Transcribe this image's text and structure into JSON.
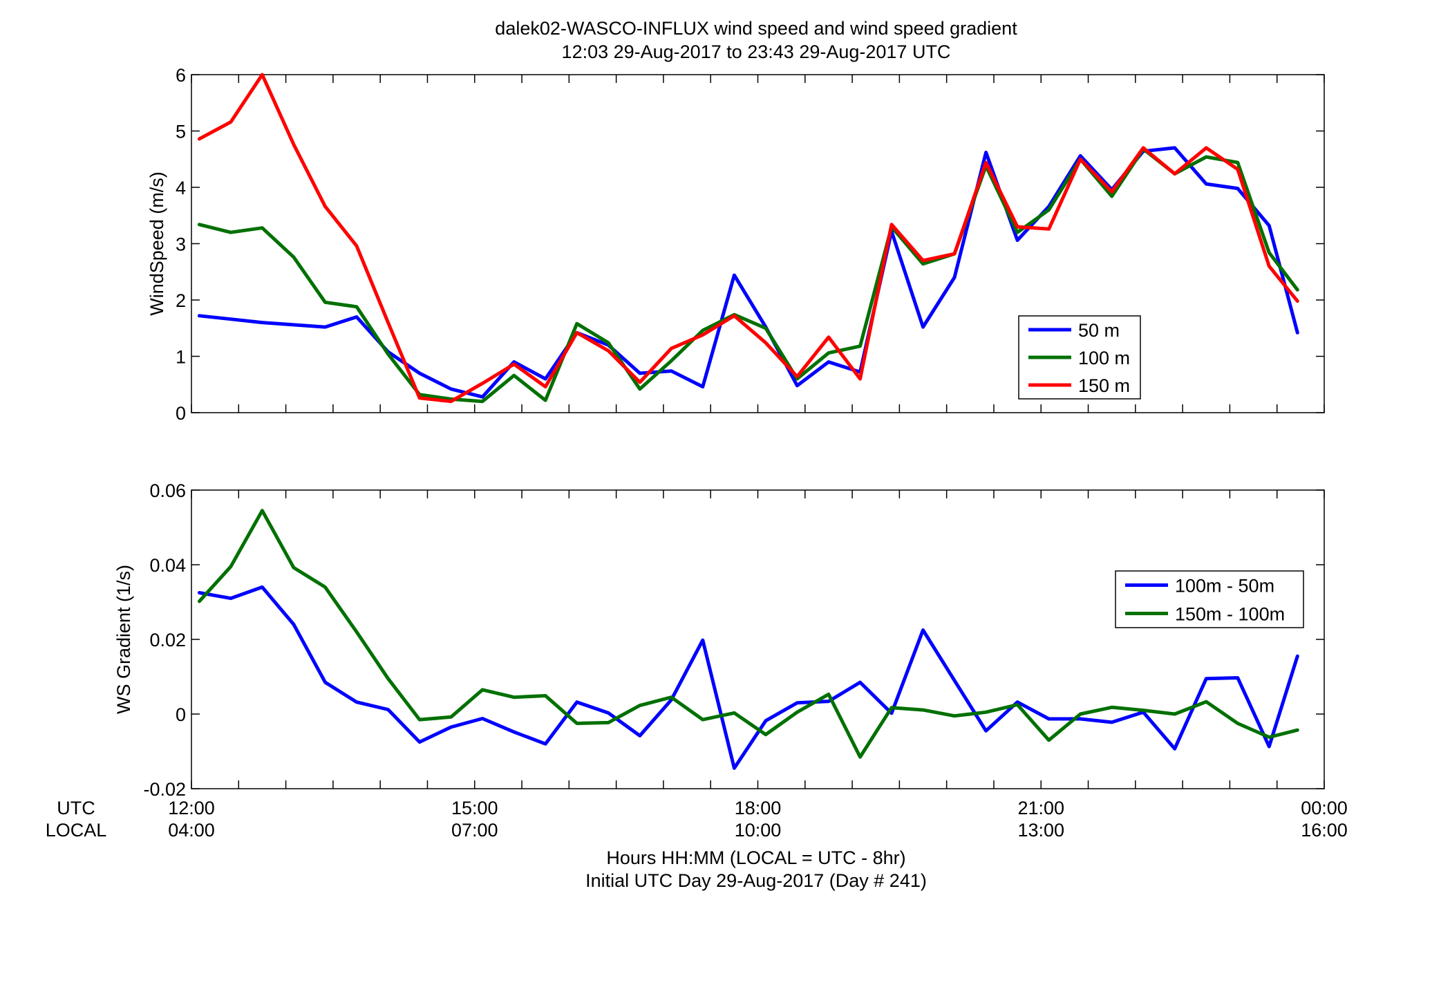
{
  "figure": {
    "title_line1": "dalek02-WASCO-INFLUX  wind speed and wind speed gradient",
    "title_line2": "12:03 29-Aug-2017 to 23:43 29-Aug-2017  UTC",
    "xlabel_line1": "Hours HH:MM  (LOCAL = UTC - 8hr)",
    "xlabel_line2": "Initial UTC Day 29-Aug-2017 (Day # 241)",
    "row_label_utc": "UTC",
    "row_label_local": "LOCAL"
  },
  "chart_data": [
    {
      "type": "line",
      "ylabel": "WindSpeed (m/s)",
      "xlim": [
        12,
        24
      ],
      "ylim": [
        0,
        6
      ],
      "yticks": [
        0,
        1,
        2,
        3,
        4,
        5,
        6
      ],
      "ytick_labels": [
        "0",
        "1",
        "2",
        "3",
        "4",
        "5",
        "6"
      ],
      "x_unit": "hours UTC",
      "xticks_minor_every": 0.5,
      "legend_position": "middle-right",
      "x": [
        12.0833,
        12.4167,
        12.75,
        13.0833,
        13.4167,
        13.75,
        14.0833,
        14.4167,
        14.75,
        15.0833,
        15.4167,
        15.75,
        16.0833,
        16.4167,
        16.75,
        17.0833,
        17.4167,
        17.75,
        18.0833,
        18.4167,
        18.75,
        19.0833,
        19.4167,
        19.75,
        20.0833,
        20.4167,
        20.75,
        21.0833,
        21.4167,
        21.75,
        22.0833,
        22.4167,
        22.75,
        23.0833,
        23.4167,
        23.7167
      ],
      "series": [
        {
          "name": "50 m",
          "color": "#0000ff",
          "values": [
            1.72,
            1.66,
            1.6,
            1.56,
            1.52,
            1.7,
            1.08,
            0.7,
            0.42,
            0.28,
            0.9,
            0.6,
            1.42,
            1.2,
            0.7,
            0.74,
            0.46,
            2.44,
            1.52,
            0.48,
            0.9,
            0.72,
            3.22,
            1.52,
            2.4,
            4.62,
            3.06,
            3.66,
            4.56,
            3.96,
            4.64,
            4.7,
            4.06,
            3.98,
            3.32,
            1.42
          ]
        },
        {
          "name": "100 m",
          "color": "#007000",
          "values": [
            3.34,
            3.2,
            3.28,
            2.76,
            1.96,
            1.88,
            1.04,
            0.32,
            0.24,
            0.2,
            0.66,
            0.22,
            1.58,
            1.24,
            0.42,
            0.92,
            1.46,
            1.74,
            1.5,
            0.6,
            1.06,
            1.18,
            3.3,
            2.64,
            2.82,
            4.38,
            3.2,
            3.6,
            4.5,
            3.84,
            4.68,
            4.24,
            4.54,
            4.44,
            2.84,
            2.18
          ]
        },
        {
          "name": "150 m",
          "color": "#ff0000",
          "values": [
            4.86,
            5.16,
            6.0,
            4.76,
            3.66,
            2.96,
            1.6,
            0.26,
            0.2,
            0.52,
            0.86,
            0.46,
            1.42,
            1.1,
            0.54,
            1.14,
            1.38,
            1.72,
            1.24,
            0.64,
            1.34,
            0.6,
            3.34,
            2.7,
            2.82,
            4.44,
            3.3,
            3.26,
            4.5,
            3.92,
            4.7,
            4.24,
            4.7,
            4.32,
            2.6,
            1.98
          ]
        }
      ]
    },
    {
      "type": "line",
      "ylabel": "WS Gradient (1/s)",
      "xlim": [
        12,
        24
      ],
      "ylim": [
        -0.02,
        0.06
      ],
      "yticks": [
        -0.02,
        0,
        0.02,
        0.04,
        0.06
      ],
      "ytick_labels": [
        "-0.02",
        "0",
        "0.02",
        "0.04",
        "0.06"
      ],
      "xticks": [
        12,
        15,
        18,
        21,
        24
      ],
      "xtick_labels_utc": [
        "12:00",
        "15:00",
        "18:00",
        "21:00",
        "00:00"
      ],
      "xtick_labels_local": [
        "04:00",
        "07:00",
        "10:00",
        "13:00",
        "16:00"
      ],
      "xticks_minor_every": 0.5,
      "legend_position": "top-right",
      "x": [
        12.0833,
        12.4167,
        12.75,
        13.0833,
        13.4167,
        13.75,
        14.0833,
        14.4167,
        14.75,
        15.0833,
        15.4167,
        15.75,
        16.0833,
        16.4167,
        16.75,
        17.0833,
        17.4167,
        17.75,
        18.0833,
        18.4167,
        18.75,
        19.0833,
        19.4167,
        19.75,
        20.0833,
        20.4167,
        20.75,
        21.0833,
        21.4167,
        21.75,
        22.0833,
        22.4167,
        22.75,
        23.0833,
        23.4167,
        23.7167
      ],
      "series": [
        {
          "name": "100m - 50m",
          "color": "#0000ff",
          "values": [
            0.0325,
            0.031,
            0.034,
            0.024,
            0.0085,
            0.0032,
            0.0012,
            -0.0075,
            -0.0035,
            -0.0012,
            -0.0048,
            -0.008,
            0.0032,
            0.0003,
            -0.0058,
            0.0038,
            0.0198,
            -0.0145,
            -0.0018,
            0.003,
            0.0034,
            0.0085,
            0.0002,
            0.0225,
            0.009,
            -0.0045,
            0.0032,
            -0.0013,
            -0.0013,
            -0.0022,
            0.0005,
            -0.0093,
            0.0095,
            0.0097,
            -0.0087,
            0.0155
          ]
        },
        {
          "name": "150m - 100m",
          "color": "#007000",
          "values": [
            0.0302,
            0.0395,
            0.0545,
            0.0392,
            0.034,
            0.022,
            0.0095,
            -0.0015,
            -0.0008,
            0.0065,
            0.0045,
            0.0049,
            -0.0025,
            -0.0023,
            0.0023,
            0.0045,
            -0.0015,
            0.0003,
            -0.0055,
            0.0005,
            0.0053,
            -0.0115,
            0.0017,
            0.0011,
            -0.0005,
            0.0005,
            0.0025,
            -0.007,
            0.0,
            0.0018,
            0.001,
            0.0,
            0.0033,
            -0.0025,
            -0.0062,
            -0.0043
          ]
        }
      ]
    }
  ]
}
